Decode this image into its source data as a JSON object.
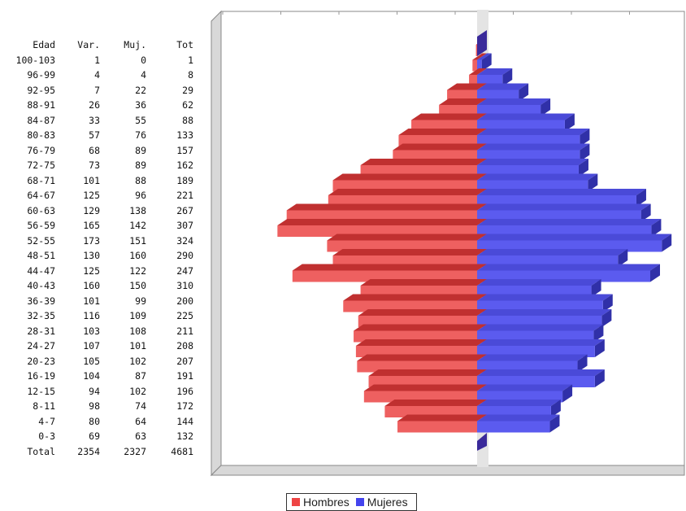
{
  "table": {
    "headers": [
      "Edad",
      "Var.",
      "Muj.",
      "Tot"
    ],
    "rows": [
      [
        "100-103",
        "1",
        "0",
        "1"
      ],
      [
        "96-99",
        "4",
        "4",
        "8"
      ],
      [
        "92-95",
        "7",
        "22",
        "29"
      ],
      [
        "88-91",
        "26",
        "36",
        "62"
      ],
      [
        "84-87",
        "33",
        "55",
        "88"
      ],
      [
        "80-83",
        "57",
        "76",
        "133"
      ],
      [
        "76-79",
        "68",
        "89",
        "157"
      ],
      [
        "72-75",
        "73",
        "89",
        "162"
      ],
      [
        "68-71",
        "101",
        "88",
        "189"
      ],
      [
        "64-67",
        "125",
        "96",
        "221"
      ],
      [
        "60-63",
        "129",
        "138",
        "267"
      ],
      [
        "56-59",
        "165",
        "142",
        "307"
      ],
      [
        "52-55",
        "173",
        "151",
        "324"
      ],
      [
        "48-51",
        "130",
        "160",
        "290"
      ],
      [
        "44-47",
        "125",
        "122",
        "247"
      ],
      [
        "40-43",
        "160",
        "150",
        "310"
      ],
      [
        "36-39",
        "101",
        "99",
        "200"
      ],
      [
        "32-35",
        "116",
        "109",
        "225"
      ],
      [
        "28-31",
        "103",
        "108",
        "211"
      ],
      [
        "24-27",
        "107",
        "101",
        "208"
      ],
      [
        "20-23",
        "105",
        "102",
        "207"
      ],
      [
        "16-19",
        "104",
        "87",
        "191"
      ],
      [
        "12-15",
        "94",
        "102",
        "196"
      ],
      [
        "8-11",
        "98",
        "74",
        "172"
      ],
      [
        "4-7",
        "80",
        "64",
        "144"
      ],
      [
        "0-3",
        "69",
        "63",
        "132"
      ]
    ],
    "total": [
      "Total",
      "2354",
      "2327",
      "4681"
    ]
  },
  "chart_data": {
    "type": "bar",
    "orientation": "horizontal-population-pyramid",
    "categories": [
      "100-103",
      "96-99",
      "92-95",
      "88-91",
      "84-87",
      "80-83",
      "76-79",
      "72-75",
      "68-71",
      "64-67",
      "60-63",
      "56-59",
      "52-55",
      "48-51",
      "44-47",
      "40-43",
      "36-39",
      "32-35",
      "28-31",
      "24-27",
      "20-23",
      "16-19",
      "12-15",
      "8-11",
      "4-7",
      "0-3"
    ],
    "series": [
      {
        "name": "Hombres",
        "color": "#ee4444",
        "values": [
          1,
          4,
          7,
          26,
          33,
          57,
          68,
          73,
          101,
          125,
          129,
          165,
          173,
          130,
          125,
          160,
          101,
          116,
          103,
          107,
          105,
          104,
          94,
          98,
          80,
          69
        ]
      },
      {
        "name": "Mujeres",
        "color": "#4444ee",
        "values": [
          0,
          4,
          22,
          36,
          55,
          76,
          89,
          89,
          88,
          96,
          138,
          142,
          151,
          160,
          122,
          150,
          99,
          109,
          108,
          101,
          102,
          87,
          102,
          74,
          64,
          63
        ]
      }
    ],
    "legend_position": "bottom-center",
    "grid": false,
    "style": "3d"
  }
}
